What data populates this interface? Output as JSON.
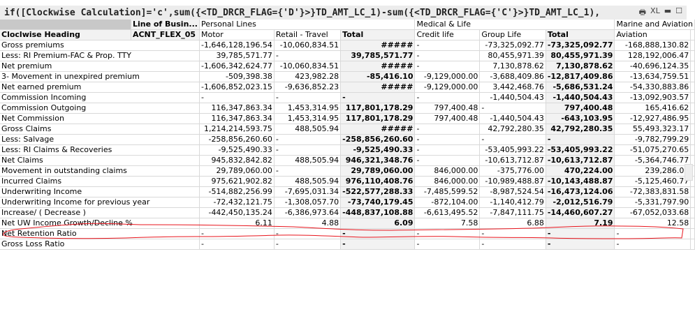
{
  "title": "if([Clockwise Calculation]='c',sum({<TD_DRCR_FLAG={'D'}>}TD_AMT_LC_1)-sum({<TD_DRCR_FLAG={'C'}>}TD_AMT_LC_1),",
  "toolbar": {
    "print": "🖶",
    "xl": "XL",
    "minimize": "▬",
    "maximize": "☐"
  },
  "header": {
    "dim1_label": "Line of Busin...",
    "dim2_label": "ACNT_FLEX_05",
    "row_label": "Cloclwise Heading",
    "groups": [
      "Personal Lines",
      "Medical & Life",
      "Marine and Aviation"
    ],
    "columns": [
      "Motor",
      "Retail - Travel",
      "Total",
      "Credit life",
      "Group Life",
      "Total",
      "Aviation"
    ]
  },
  "rows": [
    {
      "label": "Gross premiums",
      "values": [
        "-1,646,128,196.54",
        "-10,060,834.51",
        "#####",
        "-",
        "-73,325,092.77",
        "-73,325,092.77",
        "-168,888,130.82"
      ]
    },
    {
      "label": "Less: RI Premium-FAC & Prop. TTY",
      "values": [
        "39,785,571.77",
        "-",
        "39,785,571.77",
        "-",
        "80,455,971.39",
        "80,455,971.39",
        "128,192,006.47"
      ]
    },
    {
      "label": "Net premium",
      "values": [
        "-1,606,342,624.77",
        "-10,060,834.51",
        "#####",
        "-",
        "7,130,878.62",
        "7,130,878.62",
        "-40,696,124.35"
      ]
    },
    {
      "label": "3- Movement in unexpired premium",
      "values": [
        "-509,398.38",
        "423,982.28",
        "-85,416.10",
        "-9,129,000.00",
        "-3,688,409.86",
        "-12,817,409.86",
        "-13,634,759.51"
      ]
    },
    {
      "label": "Net earned premium",
      "values": [
        "-1,606,852,023.15",
        "-9,636,852.23",
        "#####",
        "-9,129,000.00",
        "3,442,468.76",
        "-5,686,531.24",
        "-54,330,883.86"
      ]
    },
    {
      "label": "Commission Incoming",
      "values": [
        "-",
        "-",
        "-",
        "-",
        "-1,440,504.43",
        "-1,440,504.43",
        "-13,092,903.57"
      ]
    },
    {
      "label": "Commission Outgoing",
      "values": [
        "116,347,863.34",
        "1,453,314.95",
        "117,801,178.29",
        "797,400.48",
        "-",
        "797,400.48",
        "165,416.62"
      ]
    },
    {
      "label": "Net Commission",
      "values": [
        "116,347,863.34",
        "1,453,314.95",
        "117,801,178.29",
        "797,400.48",
        "-1,440,504.43",
        "-643,103.95",
        "-12,927,486.95"
      ]
    },
    {
      "label": "Gross Claims",
      "values": [
        "1,214,214,593.75",
        "488,505.94",
        "#####",
        "-",
        "42,792,280.35",
        "42,792,280.35",
        "55,493,323.17"
      ]
    },
    {
      "label": "Less: Salvage",
      "values": [
        "-258,856,260.60",
        "-",
        "-258,856,260.60",
        "-",
        "-",
        "-",
        "-9,782,799.29"
      ]
    },
    {
      "label": "Less: RI Claims & Recoveries",
      "values": [
        "-9,525,490.33",
        "-",
        "-9,525,490.33",
        "-",
        "-53,405,993.22",
        "-53,405,993.22",
        "-51,075,270.65"
      ]
    },
    {
      "label": "Net Claims",
      "values": [
        "945,832,842.82",
        "488,505.94",
        "946,321,348.76",
        "-",
        "-10,613,712.87",
        "-10,613,712.87",
        "-5,364,746.77"
      ]
    },
    {
      "label": "Movement in outstanding claims",
      "values": [
        "29,789,060.00",
        "-",
        "29,789,060.00",
        "846,000.00",
        "-375,776.00",
        "470,224.00",
        "239,286.00"
      ]
    },
    {
      "label": "Incurred Claims",
      "values": [
        "975,621,902.82",
        "488,505.94",
        "976,110,408.76",
        "846,000.00",
        "-10,989,488.87",
        "-10,143,488.87",
        "-5,125,460.77"
      ]
    },
    {
      "label": "Underwriting Income",
      "values": [
        "-514,882,256.99",
        "-7,695,031.34",
        "-522,577,288.33",
        "-7,485,599.52",
        "-8,987,524.54",
        "-16,473,124.06",
        "-72,383,831.58"
      ]
    },
    {
      "label": "Underwriting Income for previous year",
      "values": [
        "-72,432,121.75",
        "-1,308,057.70",
        "-73,740,179.45",
        "-872,104.00",
        "-1,140,412.79",
        "-2,012,516.79",
        "-5,331,797.90"
      ]
    },
    {
      "label": "Increase/ ( Decrease )",
      "values": [
        "-442,450,135.24",
        "-6,386,973.64",
        "-448,837,108.88",
        "-6,613,495.52",
        "-7,847,111.75",
        "-14,460,607.27",
        "-67,052,033.68"
      ]
    },
    {
      "label": "Net UW Income Growth/Decline %",
      "values": [
        "6.11",
        "4.88",
        "6.09",
        "7.58",
        "6.88",
        "7.19",
        "12.58"
      ]
    },
    {
      "label": "Net Retention Ratio",
      "values": [
        "-",
        "-",
        "-",
        "-",
        "-",
        "-",
        "-"
      ]
    },
    {
      "label": "Gross Loss Ratio",
      "values": [
        "-",
        "-",
        "-",
        "-",
        "-",
        "-",
        "-"
      ]
    }
  ],
  "colors": {
    "annotation": "#e8141c",
    "total_bg": "#f2f2f2",
    "header_grey": "#c8c8c8"
  }
}
